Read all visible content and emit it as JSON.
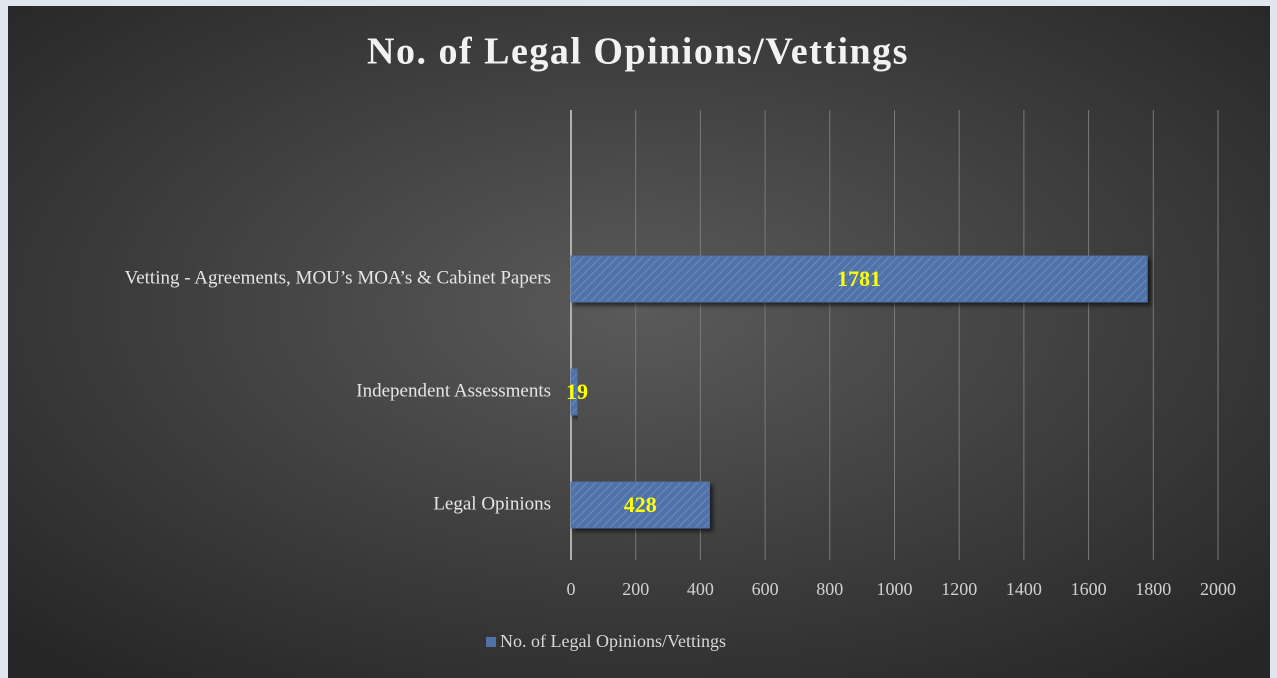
{
  "chart_data": {
    "type": "bar",
    "orientation": "horizontal",
    "title": "No. of Legal Opinions/Vettings",
    "categories": [
      "Legal Opinions",
      "Independent Assessments",
      "Vetting - Agreements, MOU’s MOA’s & Cabinet Papers"
    ],
    "series": [
      {
        "name": "No. of Legal Opinions/Vettings",
        "color": "#4f72a8",
        "values": [
          428,
          19,
          1781
        ]
      }
    ],
    "xlim": [
      0,
      2000
    ],
    "xticks": [
      0,
      200,
      400,
      600,
      800,
      1000,
      1200,
      1400,
      1600,
      1800,
      2000
    ],
    "grid": true,
    "legend": "bottom",
    "value_label_color": "#ffff00"
  }
}
